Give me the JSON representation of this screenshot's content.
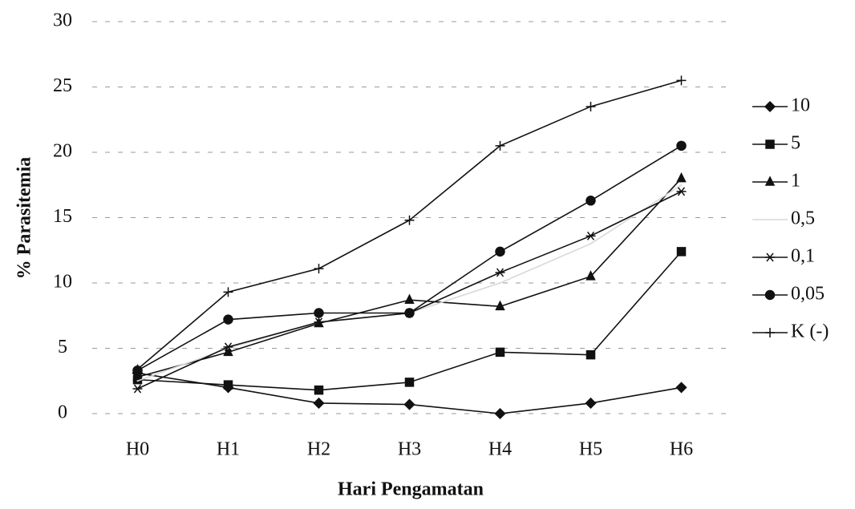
{
  "chart_data": {
    "type": "line",
    "x_label": "Hari Pengamatan",
    "y_label": "% Parasitemia",
    "categories": [
      "H0",
      "H1",
      "H2",
      "H3",
      "H4",
      "H5",
      "H6"
    ],
    "ylim": [
      0,
      30
    ],
    "yticks": [
      0,
      5,
      10,
      15,
      20,
      25,
      30
    ],
    "grid": true,
    "series": [
      {
        "name": "10",
        "color": "#111111",
        "marker": "diamond",
        "values": [
          3.1,
          2.0,
          0.8,
          0.7,
          0,
          0.8,
          2.0
        ]
      },
      {
        "name": "5",
        "color": "#111111",
        "marker": "square",
        "values": [
          2.6,
          2.2,
          1.8,
          2.4,
          4.7,
          4.5,
          12.4
        ]
      },
      {
        "name": "1",
        "color": "#111111",
        "marker": "triangle",
        "values": [
          2.8,
          4.7,
          6.9,
          8.7,
          8.2,
          10.5,
          18.0
        ]
      },
      {
        "name": "0,5",
        "color": "#d8d8d8",
        "marker": "none",
        "values": [
          2.5,
          5.0,
          7.0,
          7.7,
          10.0,
          13.0,
          17.5
        ]
      },
      {
        "name": "0,1",
        "color": "#111111",
        "marker": "star",
        "values": [
          1.9,
          5.1,
          7.0,
          7.7,
          10.8,
          13.6,
          17.0
        ]
      },
      {
        "name": "0,05",
        "color": "#111111",
        "marker": "circle",
        "values": [
          3.3,
          7.2,
          7.7,
          7.7,
          12.4,
          16.3,
          20.5
        ]
      },
      {
        "name": "K (-)",
        "color": "#111111",
        "marker": "plus",
        "values": [
          3.4,
          9.3,
          11.1,
          14.8,
          20.5,
          23.5,
          25.5
        ]
      }
    ]
  }
}
